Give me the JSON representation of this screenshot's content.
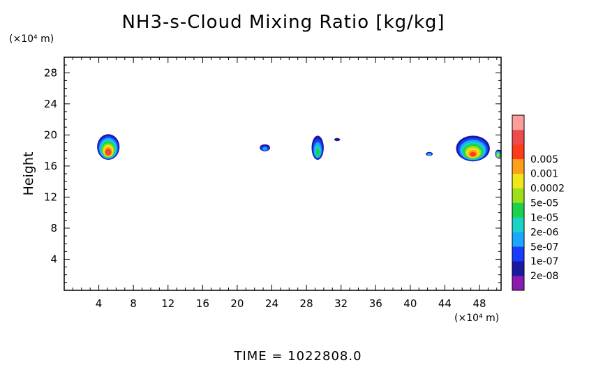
{
  "chart_data": {
    "type": "heatmap",
    "title": "NH3-s-Cloud Mixing Ratio [kg/kg]",
    "ylabel": "Height",
    "y_unit": "(×10⁴ m)",
    "x_unit": "(×10⁴ m)",
    "xlim": [
      0,
      50.5
    ],
    "ylim": [
      0,
      30
    ],
    "x_ticks": [
      4,
      8,
      12,
      16,
      20,
      24,
      28,
      32,
      36,
      40,
      44,
      48
    ],
    "y_ticks": [
      4,
      8,
      12,
      16,
      20,
      24,
      28
    ],
    "x_tick_labels": [
      "4",
      "8",
      "12",
      "16",
      "20",
      "24",
      "28",
      "32",
      "36",
      "40",
      "44",
      "48"
    ],
    "y_tick_labels": [
      "4",
      "8",
      "12",
      "16",
      "20",
      "24",
      "28"
    ],
    "colorbar": {
      "position": "right",
      "colors": [
        "#8a1ab0",
        "#1a1aa0",
        "#1a3cff",
        "#1aa8ff",
        "#1ad2c8",
        "#1ad24b",
        "#9be01a",
        "#f0e61a",
        "#ffa01a",
        "#ff3c1a",
        "#f04b4b",
        "#ff9c9c"
      ],
      "labels": [
        "2e-08",
        "1e-07",
        "5e-07",
        "2e-06",
        "1e-05",
        "5e-05",
        "0.0002",
        "0.001",
        "0.005"
      ],
      "label_levels": [
        1,
        2,
        3,
        4,
        5,
        6,
        7,
        8,
        9
      ]
    },
    "cloud_regions": [
      {
        "x": [
          3.8,
          6.4
        ],
        "y": [
          16.8,
          20.1
        ],
        "max_level": 10
      },
      {
        "x": [
          22.6,
          23.8
        ],
        "y": [
          17.9,
          18.8
        ],
        "max_level": 3
      },
      {
        "x": [
          28.6,
          30.0
        ],
        "y": [
          16.8,
          19.9
        ],
        "max_level": 5
      },
      {
        "x": [
          31.2,
          31.9
        ],
        "y": [
          19.2,
          19.6
        ],
        "max_level": 1
      },
      {
        "x": [
          41.8,
          42.6
        ],
        "y": [
          17.3,
          17.8
        ],
        "max_level": 4
      },
      {
        "x": [
          45.3,
          49.2
        ],
        "y": [
          16.6,
          19.9
        ],
        "max_level": 9
      },
      {
        "x": [
          49.8,
          50.5
        ],
        "y": [
          17.0,
          18.1
        ],
        "max_level": 8
      }
    ]
  },
  "footer": {
    "time_text": "TIME = 1022808.0"
  }
}
